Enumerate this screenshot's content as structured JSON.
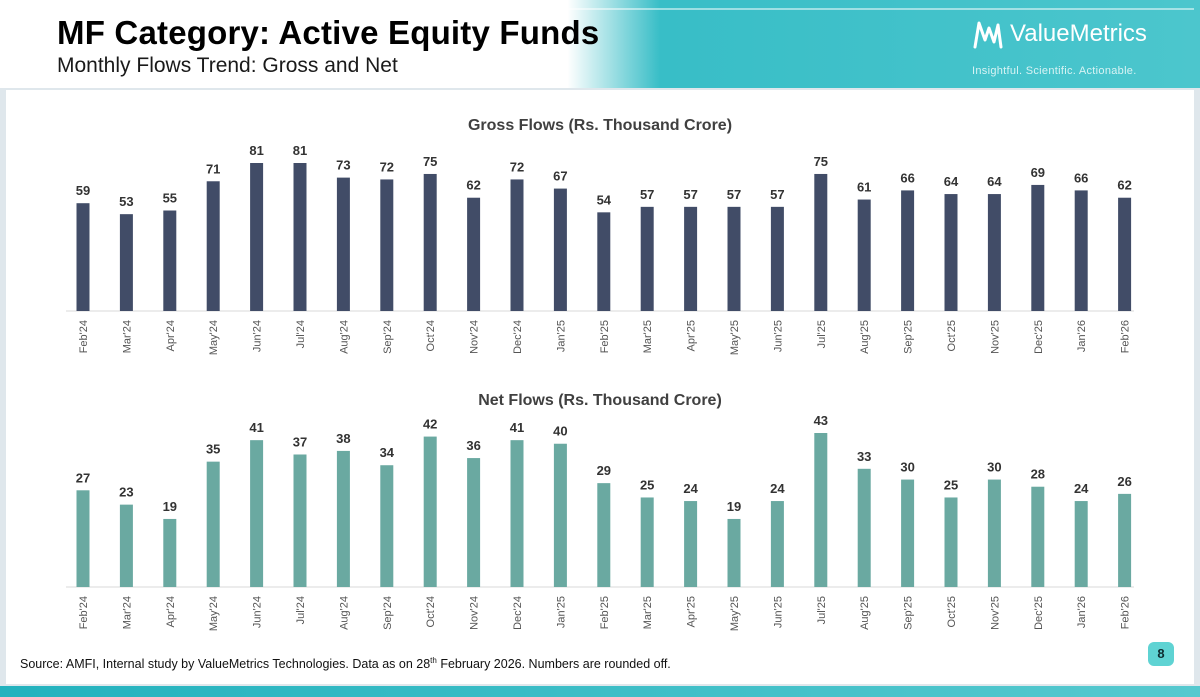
{
  "header": {
    "title": "MF Category: Active Equity Funds",
    "subtitle": "Monthly Flows Trend: Gross and Net",
    "brand_name": "ValueMetrics",
    "brand_tagline": "Insightful.  Scientific.  Actionable.",
    "brand_icon": "valuemetrics-logo-icon"
  },
  "colors": {
    "header_gradient_start": "#22b1bd",
    "header_gradient_end": "#4cc6cd",
    "gross_bar": "#414c67",
    "net_bar": "#6aa9a1",
    "axis_text": "#555555",
    "value_label": "#333333",
    "page_badge": "#5fd3d3"
  },
  "chart_data": [
    {
      "type": "bar",
      "title": "Gross Flows (Rs. Thousand Crore)",
      "categories": [
        "Feb'24",
        "Mar'24",
        "Apr'24",
        "May'24",
        "Jun'24",
        "Jul'24",
        "Aug'24",
        "Sep'24",
        "Oct'24",
        "Nov'24",
        "Dec'24",
        "Jan'25",
        "Feb'25",
        "Mar'25",
        "Apr'25",
        "May'25",
        "Jun'25",
        "Jul'25",
        "Aug'25",
        "Sep'25",
        "Oct'25",
        "Nov'25",
        "Dec'25",
        "Jan'26",
        "Feb'26"
      ],
      "values": [
        59,
        53,
        55,
        71,
        81,
        81,
        73,
        72,
        75,
        62,
        72,
        67,
        54,
        57,
        57,
        57,
        57,
        75,
        61,
        66,
        64,
        64,
        69,
        66,
        62
      ],
      "xlabel": "",
      "ylabel": "",
      "data_labels": true,
      "ylim": [
        0,
        81
      ],
      "grid": false,
      "color": "#414c67"
    },
    {
      "type": "bar",
      "title": "Net Flows (Rs. Thousand Crore)",
      "categories": [
        "Feb'24",
        "Mar'24",
        "Apr'24",
        "May'24",
        "Jun'24",
        "Jul'24",
        "Aug'24",
        "Sep'24",
        "Oct'24",
        "Nov'24",
        "Dec'24",
        "Jan'25",
        "Feb'25",
        "Mar'25",
        "Apr'25",
        "May'25",
        "Jun'25",
        "Jul'25",
        "Aug'25",
        "Sep'25",
        "Oct'25",
        "Nov'25",
        "Dec'25",
        "Jan'26",
        "Feb'26"
      ],
      "values": [
        27,
        23,
        19,
        35,
        41,
        37,
        38,
        34,
        42,
        36,
        41,
        40,
        29,
        25,
        24,
        19,
        24,
        43,
        33,
        30,
        25,
        30,
        28,
        24,
        26
      ],
      "xlabel": "",
      "ylabel": "",
      "data_labels": true,
      "ylim": [
        0,
        43
      ],
      "grid": false,
      "color": "#6aa9a1"
    }
  ],
  "footer": {
    "source_prefix": "Source: AMFI, Internal study by ValueMetrics Technologies. Data as on 28",
    "source_sup": "th",
    "source_suffix": " February 2026. Numbers are rounded off.",
    "page_number": "8"
  }
}
